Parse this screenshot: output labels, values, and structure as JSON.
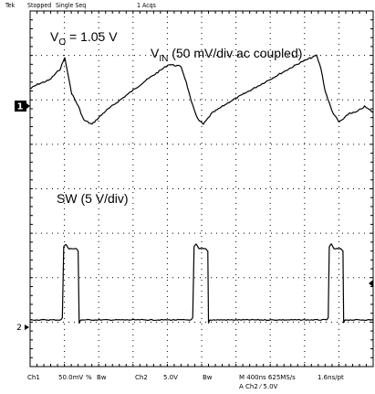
{
  "header": {
    "brand": "Tek",
    "state": "Stopped",
    "mode": "Single Seq",
    "acqs": "1 Acqs"
  },
  "annotations": {
    "vo_main": "V",
    "vo_sub": "O",
    "vo_rest": " = 1.05 V",
    "vin_main": "V",
    "vin_sub": "IN",
    "vin_rest": " (50 mV/div ac coupled)",
    "sw": "SW (5 V/div)"
  },
  "markers": {
    "ch1": "1",
    "ch2": "2"
  },
  "footer": {
    "ch1_label": "Ch1",
    "ch1_scale": "50.0mV",
    "ch1_coupling": "%",
    "ch1_bw": "Bw",
    "ch2_label": "Ch2",
    "ch2_scale": "5.0V",
    "ch2_bw": "Bw",
    "timebase": "M 400ns 625MS/s",
    "resolution": "1.6ns/pt",
    "trigger": "A  Ch2  ⁄  5.0V"
  },
  "colors": {
    "trace": "#000000",
    "grid": "#000000",
    "background": "#ffffff"
  },
  "chart_data": {
    "type": "line",
    "grid": true,
    "x_units": "divisions",
    "y_units": "divisions",
    "xlim": [
      0,
      10
    ],
    "ylim": [
      0,
      8
    ],
    "series": [
      {
        "x": [
          0,
          0.22,
          0.57,
          0.88,
          1.01,
          1.21,
          1.41,
          1.56,
          1.8,
          2.2,
          2.8,
          3.4,
          4.05,
          4.4,
          4.55,
          4.7,
          4.9,
          5.05,
          5.2,
          5.3,
          5.8,
          6.5,
          7.2,
          7.9,
          8.35,
          8.48,
          8.6,
          8.8,
          9.0,
          9.15,
          9.3,
          9.5,
          9.75,
          10
        ],
        "values": [
          6.25,
          6.35,
          6.45,
          6.7,
          6.95,
          6.15,
          5.85,
          5.55,
          5.45,
          5.75,
          6.1,
          6.45,
          6.8,
          6.75,
          6.4,
          5.95,
          5.55,
          5.45,
          5.6,
          5.7,
          5.95,
          6.25,
          6.55,
          6.85,
          7.0,
          6.7,
          6.2,
          5.75,
          5.5,
          5.58,
          5.7,
          5.72,
          5.85,
          5.72
        ]
      },
      {
        "x": [
          0,
          0.9,
          0.94,
          0.98,
          1.05,
          1.13,
          1.35,
          1.4,
          1.43,
          1.47,
          4.7,
          4.74,
          4.78,
          4.84,
          4.92,
          5.12,
          5.18,
          5.2,
          5.24,
          8.65,
          8.69,
          8.72,
          8.78,
          8.86,
          9.05,
          9.12,
          9.14,
          9.18,
          10
        ],
        "values": [
          1.05,
          1.05,
          1.1,
          2.7,
          2.75,
          2.65,
          2.65,
          2.6,
          0.98,
          1.05,
          1.05,
          1.1,
          2.7,
          2.75,
          2.65,
          2.65,
          2.6,
          0.98,
          1.05,
          1.05,
          1.1,
          2.7,
          2.75,
          2.65,
          2.65,
          2.6,
          0.98,
          1.05,
          1.05
        ]
      }
    ]
  }
}
